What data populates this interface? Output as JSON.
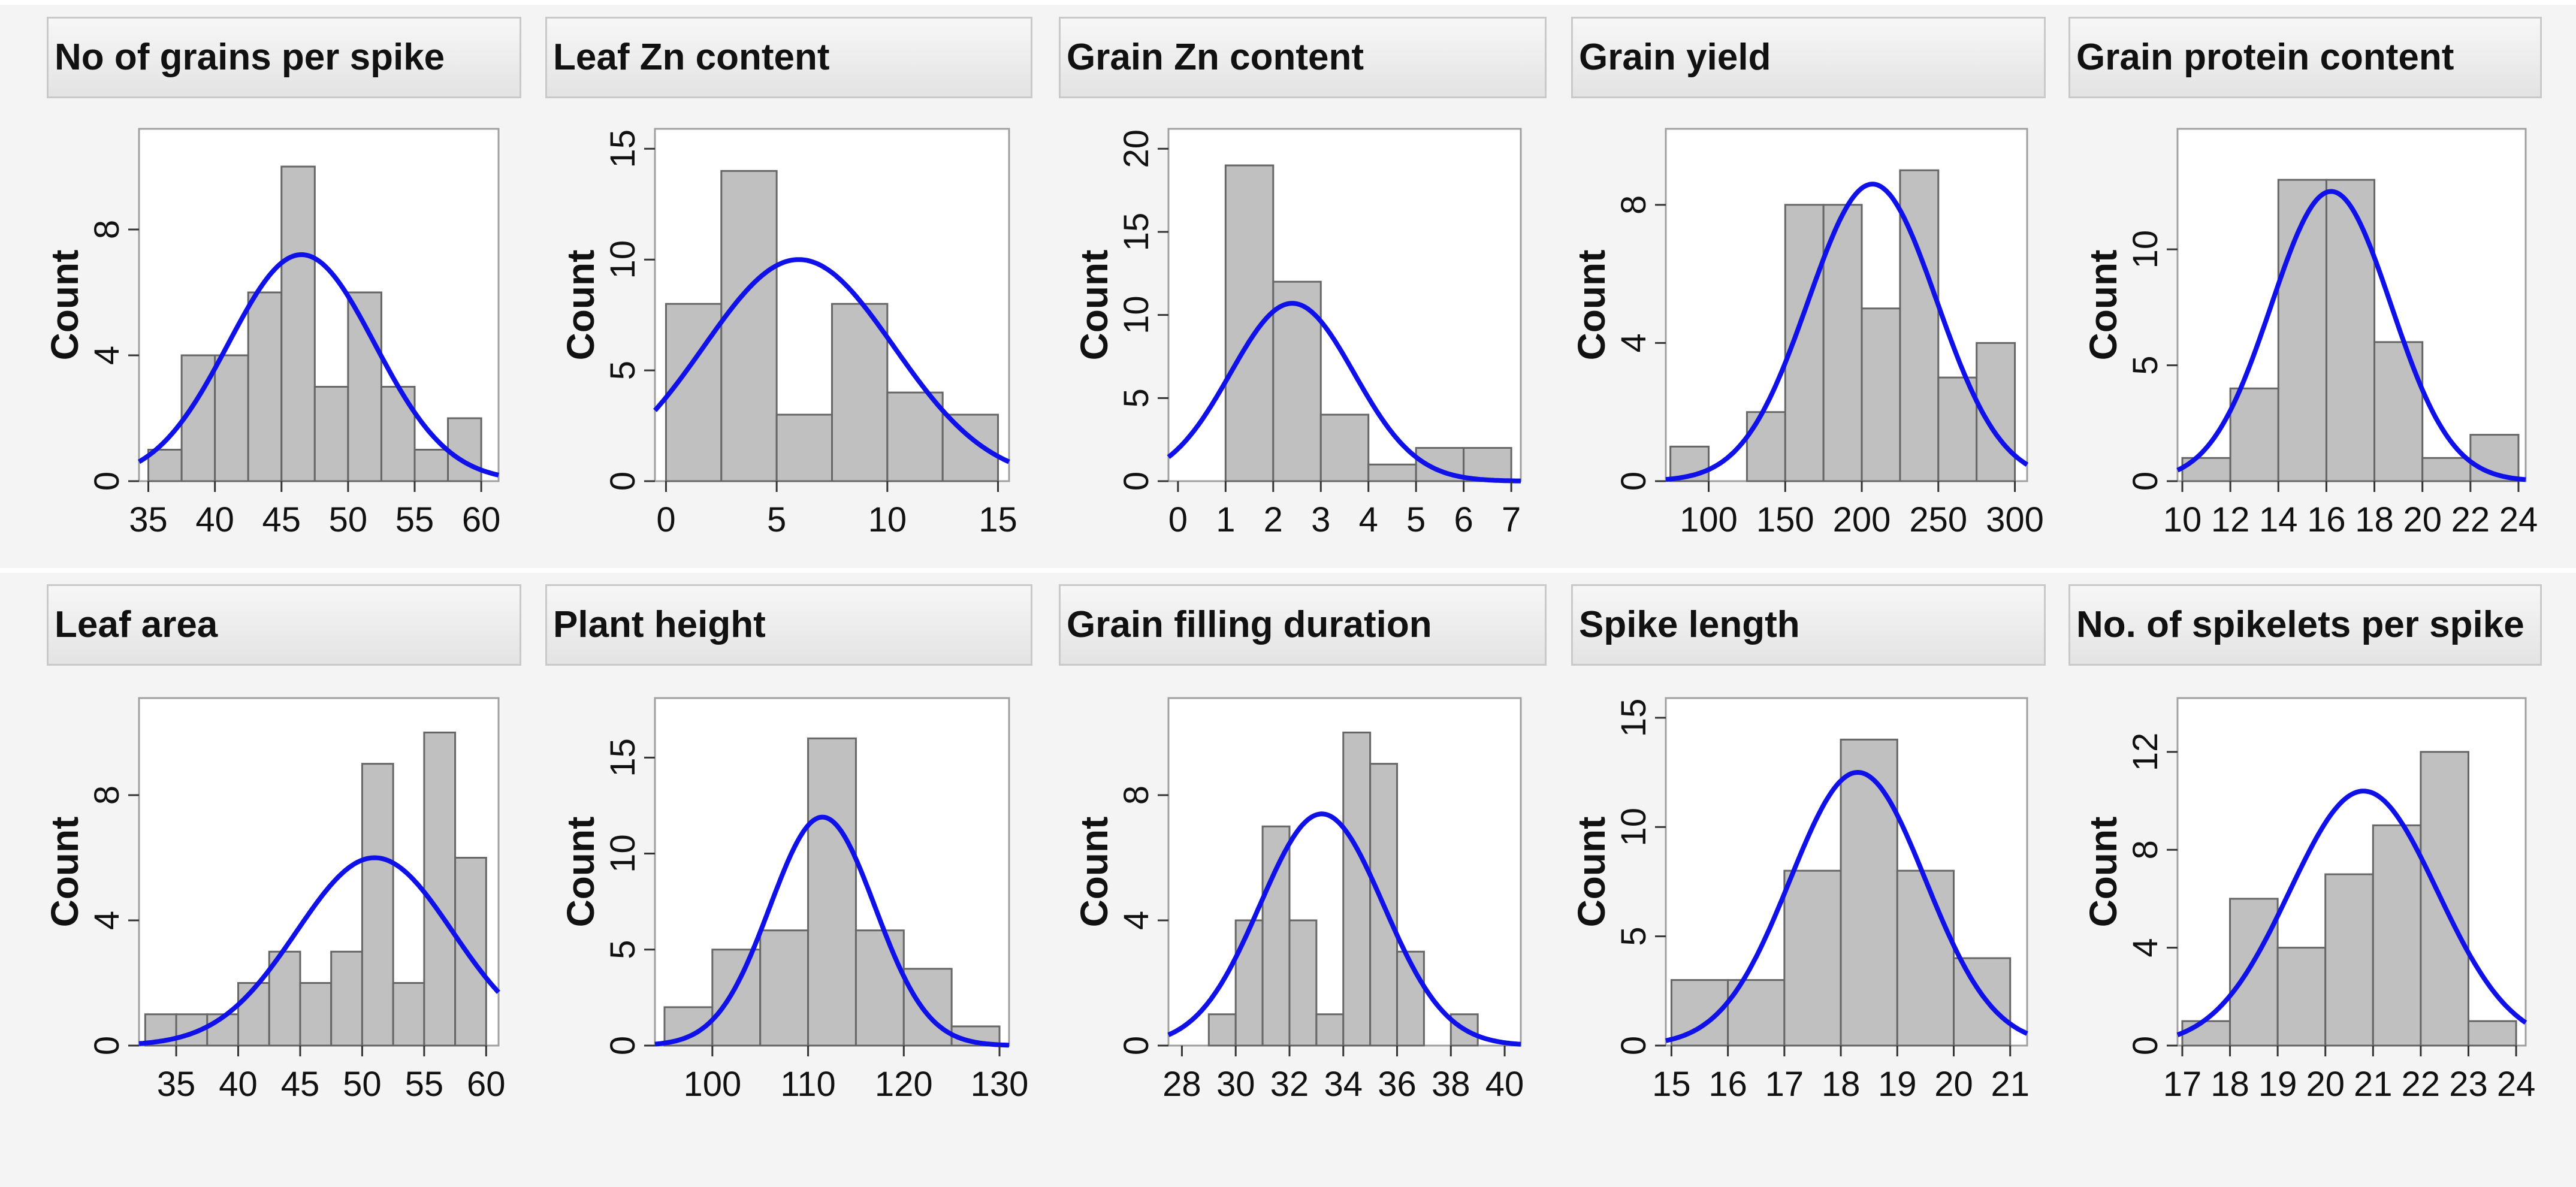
{
  "chart_data": [
    {
      "type": "bar",
      "title": "No of grains per spike",
      "ylabel": "Count",
      "xlim": [
        34.3,
        61.3
      ],
      "ylim": [
        0,
        11.2
      ],
      "xticks": [
        35,
        40,
        45,
        50,
        55,
        60
      ],
      "yticks": [
        0,
        4,
        8
      ],
      "bin_edges": [
        35,
        37.5,
        40,
        42.5,
        45,
        47.5,
        50,
        52.5,
        55,
        57.5,
        60
      ],
      "values": [
        1,
        4,
        4,
        6,
        10,
        3,
        6,
        3,
        1,
        2
      ],
      "normal_fit": {
        "mean": 46.5,
        "sd": 5.5,
        "peak": 7.2
      }
    },
    {
      "type": "bar",
      "title": "Leaf Zn content",
      "ylabel": "Count",
      "xlim": [
        -0.5,
        15.5
      ],
      "ylim": [
        0,
        15.9
      ],
      "xticks": [
        0,
        5,
        10,
        15
      ],
      "yticks": [
        0,
        5,
        10,
        15
      ],
      "bin_edges": [
        0,
        2.5,
        5,
        7.5,
        10,
        12.5,
        15
      ],
      "values": [
        8,
        14,
        3,
        8,
        4,
        3
      ],
      "normal_fit": {
        "mean": 6,
        "sd": 4.3,
        "peak": 10
      }
    },
    {
      "type": "bar",
      "title": "Grain Zn content",
      "ylabel": "Count",
      "xlim": [
        -0.2,
        7.2
      ],
      "ylim": [
        0,
        21.2
      ],
      "xticks": [
        0,
        1,
        2,
        3,
        4,
        5,
        6,
        7
      ],
      "yticks": [
        0,
        5,
        10,
        15,
        20
      ],
      "bin_edges": [
        1,
        2,
        3,
        4,
        5,
        6,
        7
      ],
      "values": [
        19,
        12,
        4,
        1,
        2,
        2
      ],
      "normal_fit": {
        "mean": 2.4,
        "sd": 1.3,
        "peak": 10.7
      }
    },
    {
      "type": "bar",
      "title": "Grain yield",
      "ylabel": "Count",
      "xlim": [
        72,
        308
      ],
      "ylim": [
        0,
        10.2
      ],
      "xticks": [
        100,
        150,
        200,
        250,
        300
      ],
      "yticks": [
        0,
        4,
        8
      ],
      "bin_edges": [
        75,
        100,
        125,
        150,
        175,
        200,
        225,
        250,
        275,
        300
      ],
      "values": [
        1,
        0,
        2,
        8,
        8,
        5,
        9,
        3,
        4
      ],
      "normal_fit": {
        "mean": 207,
        "sd": 42,
        "peak": 8.6
      }
    },
    {
      "type": "bar",
      "title": "Grain protein content",
      "ylabel": "Count",
      "xlim": [
        9.8,
        24.3
      ],
      "ylim": [
        0,
        15.2
      ],
      "xticks": [
        10,
        12,
        14,
        16,
        18,
        20,
        22,
        24
      ],
      "yticks": [
        0,
        5,
        10
      ],
      "bin_edges": [
        10,
        12,
        14,
        16,
        18,
        20,
        22,
        24
      ],
      "values": [
        1,
        4,
        13,
        13,
        6,
        1,
        2
      ],
      "normal_fit": {
        "mean": 16.2,
        "sd": 2.5,
        "peak": 12.5
      }
    },
    {
      "type": "bar",
      "title": "Leaf area",
      "ylabel": "Count",
      "xlim": [
        32,
        61
      ],
      "ylim": [
        0,
        11.1
      ],
      "xticks": [
        35,
        40,
        45,
        50,
        55,
        60
      ],
      "yticks": [
        0,
        4,
        8
      ],
      "bin_edges": [
        32.5,
        35,
        37.5,
        40,
        42.5,
        45,
        47.5,
        50,
        52.5,
        55,
        57.5,
        60
      ],
      "values": [
        1,
        1,
        1,
        2,
        3,
        2,
        3,
        9,
        2,
        10,
        6
      ],
      "normal_fit": {
        "mean": 51,
        "sd": 6.3,
        "peak": 6
      }
    },
    {
      "type": "bar",
      "title": "Plant height",
      "ylabel": "Count",
      "xlim": [
        94,
        131
      ],
      "ylim": [
        0,
        18.1
      ],
      "xticks": [
        100,
        110,
        120,
        130
      ],
      "yticks": [
        0,
        5,
        10,
        15
      ],
      "bin_edges": [
        95,
        100,
        105,
        110,
        115,
        120,
        125,
        130
      ],
      "values": [
        2,
        5,
        6,
        16,
        6,
        4,
        1
      ],
      "normal_fit": {
        "mean": 111.5,
        "sd": 5.5,
        "peak": 11.9
      }
    },
    {
      "type": "bar",
      "title": "Grain filling duration",
      "ylabel": "Count",
      "xlim": [
        27.5,
        40.6
      ],
      "ylim": [
        0,
        11.1
      ],
      "xticks": [
        28,
        30,
        32,
        34,
        36,
        38,
        40
      ],
      "yticks": [
        0,
        4,
        8
      ],
      "bin_edges": [
        29,
        30,
        31,
        32,
        33,
        34,
        35,
        36,
        37,
        38,
        39
      ],
      "values": [
        1,
        4,
        7,
        4,
        1,
        10,
        9,
        3,
        0,
        1
      ],
      "normal_fit": {
        "mean": 33.2,
        "sd": 2.3,
        "peak": 7.4
      }
    },
    {
      "type": "bar",
      "title": "Spike length",
      "ylabel": "Count",
      "xlim": [
        14.9,
        21.3
      ],
      "ylim": [
        0,
        15.9
      ],
      "xticks": [
        15,
        16,
        17,
        18,
        19,
        20,
        21
      ],
      "yticks": [
        0,
        5,
        10,
        15
      ],
      "bin_edges": [
        15,
        16,
        17,
        18,
        19,
        20,
        21
      ],
      "values": [
        3,
        3,
        8,
        14,
        8,
        4
      ],
      "normal_fit": {
        "mean": 18.3,
        "sd": 1.2,
        "peak": 12.5
      }
    },
    {
      "type": "bar",
      "title": "No. of spikelets per spike",
      "ylabel": "Count",
      "xlim": [
        16.9,
        24.2
      ],
      "ylim": [
        0,
        14.2
      ],
      "xticks": [
        17,
        18,
        19,
        20,
        21,
        22,
        23,
        24
      ],
      "yticks": [
        0,
        4,
        8,
        12
      ],
      "bin_edges": [
        17,
        18,
        19,
        20,
        21,
        22,
        23,
        24
      ],
      "values": [
        1,
        6,
        4,
        7,
        9,
        12,
        1
      ],
      "normal_fit": {
        "mean": 20.8,
        "sd": 1.55,
        "peak": 10.4
      }
    }
  ]
}
